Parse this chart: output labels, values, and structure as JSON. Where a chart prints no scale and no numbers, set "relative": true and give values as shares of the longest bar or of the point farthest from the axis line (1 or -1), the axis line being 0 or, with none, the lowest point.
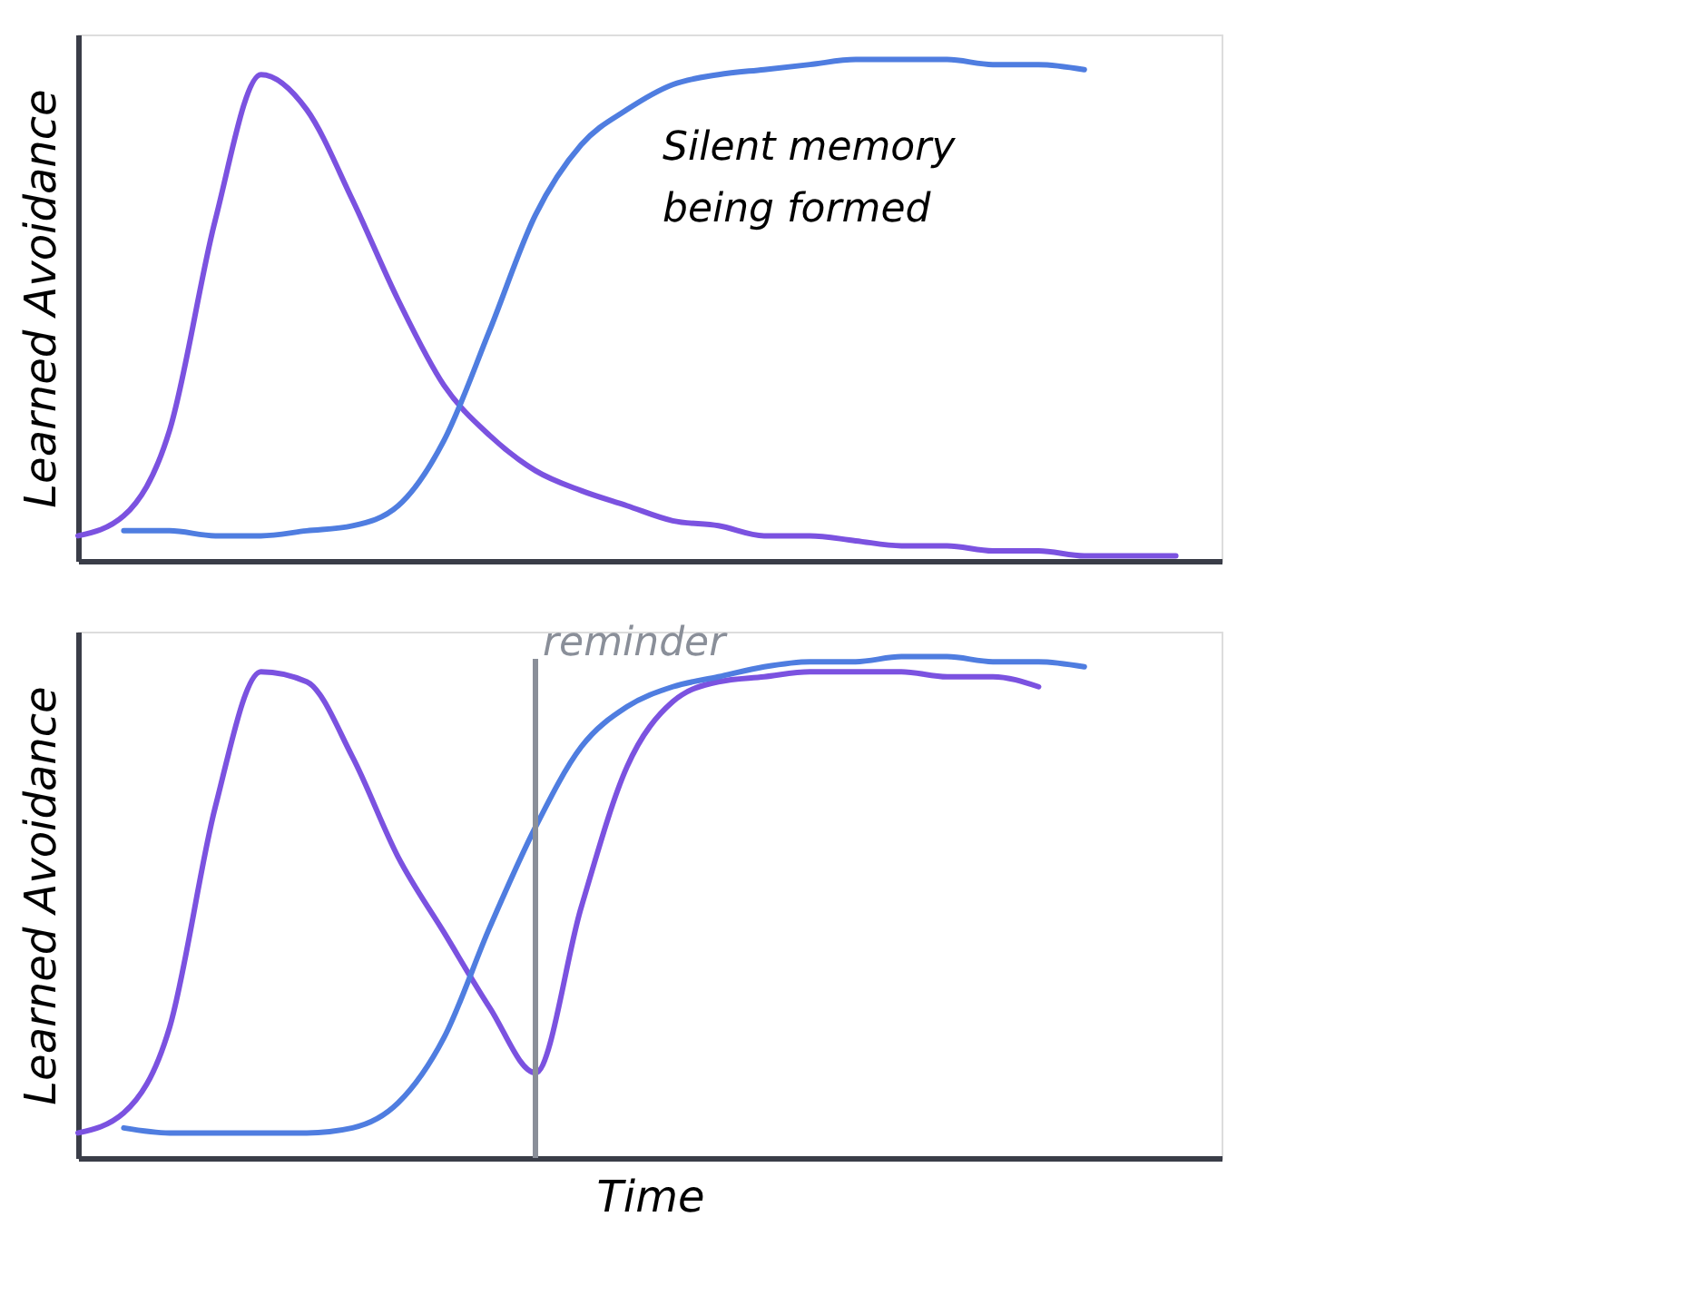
{
  "chart_data": [
    {
      "type": "line",
      "relative": true,
      "ylabel": "Learned Avoidance",
      "categories": [
        null,
        null,
        null,
        null,
        null,
        null,
        null,
        null,
        null,
        null,
        null,
        null,
        null,
        null,
        null,
        null,
        null,
        null,
        null,
        null,
        null,
        null,
        null,
        null,
        null,
        null
      ],
      "grid": false,
      "marker": "none",
      "line_style": "solid",
      "annotations": [
        "Silent memory\nbeing formed"
      ],
      "series": [
        {
          "color": "#7b52e0",
          "values": [
            0.05,
            0.09,
            0.26,
            0.68,
            0.97,
            0.9,
            0.72,
            0.52,
            0.35,
            0.25,
            0.18,
            0.14,
            0.11,
            0.08,
            0.07,
            0.05,
            0.05,
            0.04,
            0.03,
            0.03,
            0.02,
            0.02,
            0.01,
            0.01,
            0.01,
            null
          ]
        },
        {
          "color": "#4f7de0",
          "values": [
            null,
            0.06,
            0.06,
            0.05,
            0.05,
            0.06,
            0.07,
            0.11,
            0.24,
            0.46,
            0.69,
            0.83,
            0.9,
            0.95,
            0.97,
            0.98,
            0.99,
            1.0,
            1.0,
            1.0,
            0.99,
            0.99,
            0.98,
            null,
            null,
            null
          ]
        }
      ]
    },
    {
      "type": "line",
      "relative": true,
      "ylabel": "Learned Avoidance",
      "xlabel": "Time",
      "categories": [
        null,
        null,
        null,
        null,
        null,
        null,
        null,
        null,
        null,
        null,
        null,
        null,
        null,
        null,
        null,
        null,
        null,
        null,
        null,
        null,
        null,
        null,
        null,
        null,
        null,
        null
      ],
      "grid": false,
      "marker": "none",
      "line_style": "solid",
      "annotations": [
        "reminder"
      ],
      "series": [
        {
          "color": "#7b52e0",
          "values": [
            0.05,
            0.09,
            0.26,
            0.7,
            0.97,
            0.95,
            0.8,
            0.6,
            0.45,
            0.3,
            0.17,
            0.5,
            0.78,
            0.91,
            0.95,
            0.96,
            0.97,
            0.97,
            0.97,
            0.96,
            0.96,
            0.94,
            null,
            null,
            null,
            null
          ]
        },
        {
          "color": "#4f7de0",
          "values": [
            null,
            0.06,
            0.05,
            0.05,
            0.05,
            0.05,
            0.06,
            0.11,
            0.24,
            0.46,
            0.66,
            0.82,
            0.9,
            0.94,
            0.96,
            0.98,
            0.99,
            0.99,
            1.0,
            1.0,
            0.99,
            0.99,
            0.98,
            null,
            null,
            null
          ]
        }
      ]
    }
  ]
}
